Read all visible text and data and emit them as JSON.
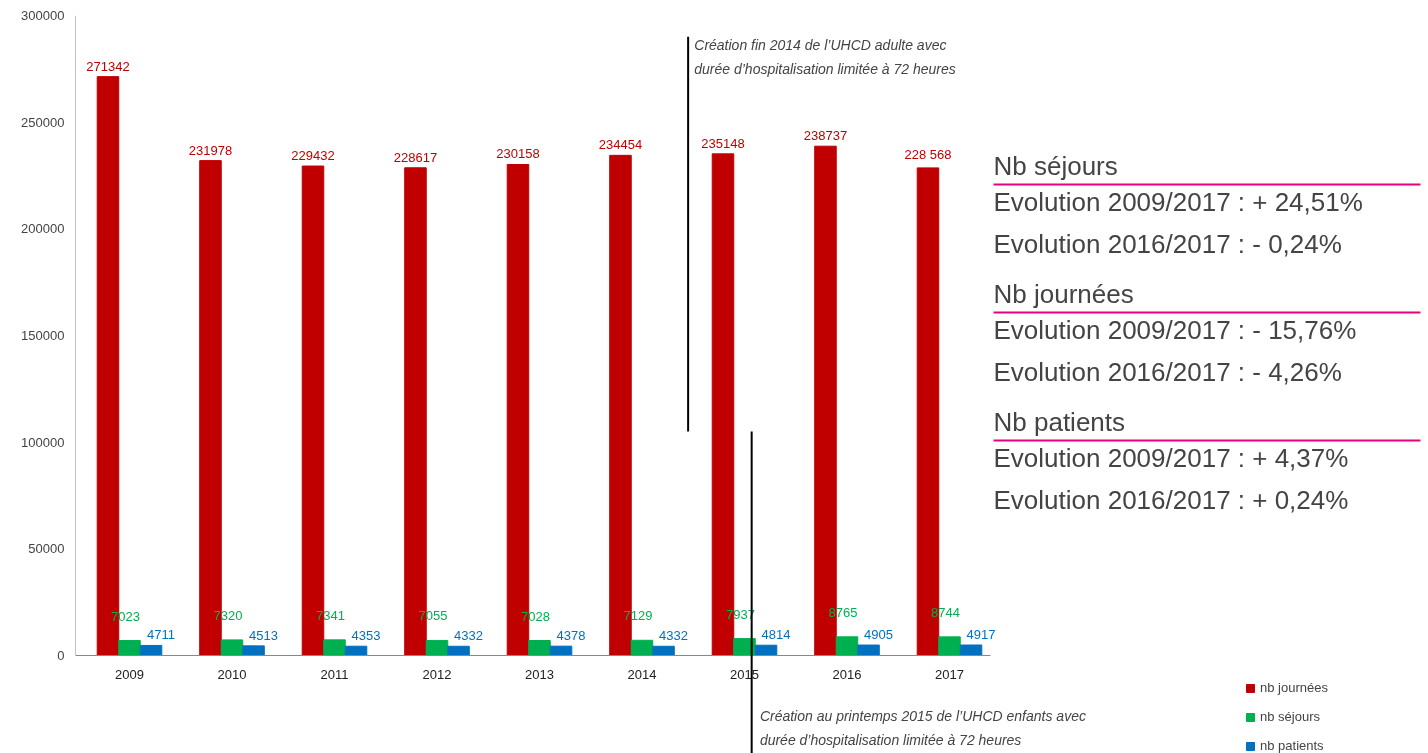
{
  "chart_data": {
    "type": "bar",
    "categories": [
      "2009",
      "2010",
      "2011",
      "2012",
      "2013",
      "2014",
      "2015",
      "2016",
      "2017"
    ],
    "series": [
      {
        "name": "nb journées",
        "color": "#c00000",
        "values": [
          271342,
          231978,
          229432,
          228617,
          230158,
          234454,
          235148,
          238737,
          228568
        ],
        "value_labels": [
          "271342",
          "231978",
          "229432",
          "228617",
          "230158",
          "234454",
          "235148",
          "238737",
          "228 568"
        ]
      },
      {
        "name": "nb séjours",
        "color": "#00b050",
        "values": [
          7023,
          7320,
          7341,
          7055,
          7028,
          7129,
          7937,
          8765,
          8744
        ],
        "value_labels": [
          "7023",
          "7320",
          "7341",
          "7055",
          "7028",
          "7129",
          "7937",
          "8765",
          "8744"
        ]
      },
      {
        "name": "nb patients",
        "color": "#0070c0",
        "values": [
          4711,
          4513,
          4353,
          4332,
          4378,
          4332,
          4814,
          4905,
          4917
        ],
        "value_labels": [
          "4711",
          "4513",
          "4353",
          "4332",
          "4378",
          "4332",
          "4814",
          "4905",
          "4917"
        ]
      }
    ],
    "ylim": [
      0,
      300000
    ],
    "yticks": [
      0,
      50000,
      100000,
      150000,
      200000,
      250000,
      300000
    ],
    "grid": false,
    "legend": "bottom right",
    "annotations": [
      "Création fin 2014 de l’UHCD adulte avec\ndurée d’hospitalisation limitée à 72 heures",
      "Création au printemps 2015 de l’UHCD enfants avec\ndurée d’hospitalisation limitée à 72 heures",
      "Nb séjours",
      "Evolution 2009/2017 : + 24,51%",
      "Evolution 2016/2017 : - 0,24%",
      "Nb journées",
      "Evolution 2009/2017 : - 15,76%",
      "Evolution 2016/2017 : - 4,26%",
      "Nb patients",
      "Evolution 2009/2017 : + 4,37%",
      "Evolution 2016/2017 : + 0,24%"
    ]
  }
}
